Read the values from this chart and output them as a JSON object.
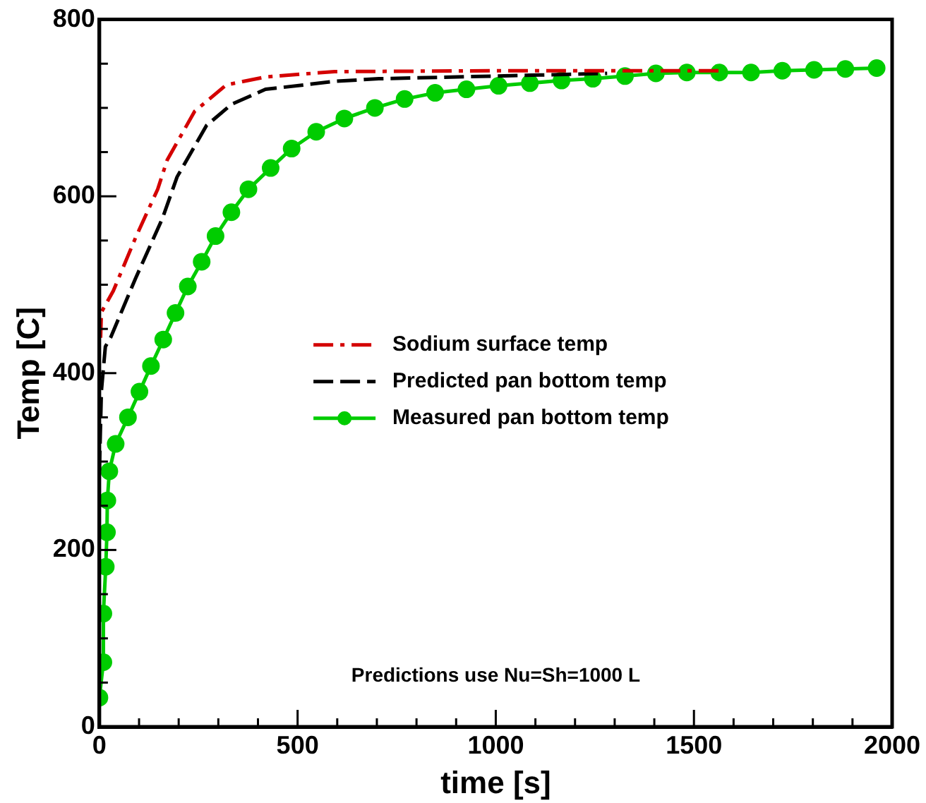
{
  "chart_data": {
    "type": "line",
    "xlabel": "time [s]",
    "ylabel": "Temp [C]",
    "xlim": [
      0,
      2000
    ],
    "ylim": [
      0,
      800
    ],
    "xticks": [
      0,
      {
        "value": 100,
        "label": null
      },
      {
        "value": 200,
        "label": null
      },
      {
        "value": 300,
        "label": null
      },
      {
        "value": 400,
        "label": null
      },
      500,
      {
        "value": 600,
        "label": null
      },
      {
        "value": 700,
        "label": null
      },
      {
        "value": 800,
        "label": null
      },
      {
        "value": 900,
        "label": null
      },
      1000,
      {
        "value": 1100,
        "label": null
      },
      {
        "value": 1200,
        "label": null
      },
      {
        "value": 1300,
        "label": null
      },
      {
        "value": 1400,
        "label": null
      },
      1500,
      {
        "value": 1600,
        "label": null
      },
      {
        "value": 1700,
        "label": null
      },
      {
        "value": 1800,
        "label": null
      },
      {
        "value": 1900,
        "label": null
      },
      2000
    ],
    "yticks": [
      0,
      {
        "value": 50,
        "label": null
      },
      {
        "value": 100,
        "label": null
      },
      {
        "value": 150,
        "label": null
      },
      200,
      {
        "value": 250,
        "label": null
      },
      {
        "value": 300,
        "label": null
      },
      {
        "value": 350,
        "label": null
      },
      400,
      {
        "value": 450,
        "label": null
      },
      {
        "value": 500,
        "label": null
      },
      {
        "value": 550,
        "label": null
      },
      600,
      {
        "value": 650,
        "label": null
      },
      {
        "value": 700,
        "label": null
      },
      {
        "value": 750,
        "label": null
      },
      800
    ],
    "grid": false,
    "legend": "right",
    "annotations": [
      "Predictions use Nu=Sh=1000 L"
    ],
    "series": [
      {
        "name": "Sodium surface temp",
        "color": "#d40000",
        "line_style": "dashdot",
        "marker": "none",
        "x": [
          3,
          5,
          35,
          91,
          147,
          171,
          240,
          320,
          419,
          593,
          1000,
          1580
        ],
        "values": [
          440,
          469,
          493,
          553,
          608,
          641,
          696,
          726,
          735,
          741,
          742,
          742
        ]
      },
      {
        "name": "Predicted pan bottom temp",
        "color": "#000000",
        "line_style": "dashed",
        "marker": "none",
        "x": [
          0,
          5,
          15,
          29,
          91,
          159,
          196,
          270,
          333,
          419,
          593,
          705,
          1000,
          1281
        ],
        "values": [
          290,
          380,
          430,
          441,
          507,
          575,
          622,
          680,
          704,
          721,
          730,
          733,
          736,
          739
        ]
      },
      {
        "name": "Measured pan bottom temp",
        "color": "#00cc00",
        "line_style": "solid",
        "marker": "circle",
        "x": [
          0,
          10,
          10,
          16,
          19,
          20,
          25,
          41,
          72,
          101,
          130,
          161,
          192,
          223,
          258,
          293,
          333,
          376,
          432,
          485,
          547,
          618,
          695,
          770,
          847,
          926,
          1007,
          1086,
          1166,
          1245,
          1326,
          1404,
          1482,
          1564,
          1644,
          1723,
          1803,
          1882,
          1961
        ],
        "values": [
          33,
          73,
          128,
          181,
          220,
          256,
          289,
          320,
          350,
          379,
          408,
          438,
          468,
          498,
          526,
          555,
          582,
          608,
          632,
          654,
          673,
          688,
          700,
          710,
          717,
          721,
          725,
          728,
          731,
          733,
          736,
          739,
          740,
          740,
          740,
          742,
          743,
          744,
          745
        ]
      }
    ]
  }
}
